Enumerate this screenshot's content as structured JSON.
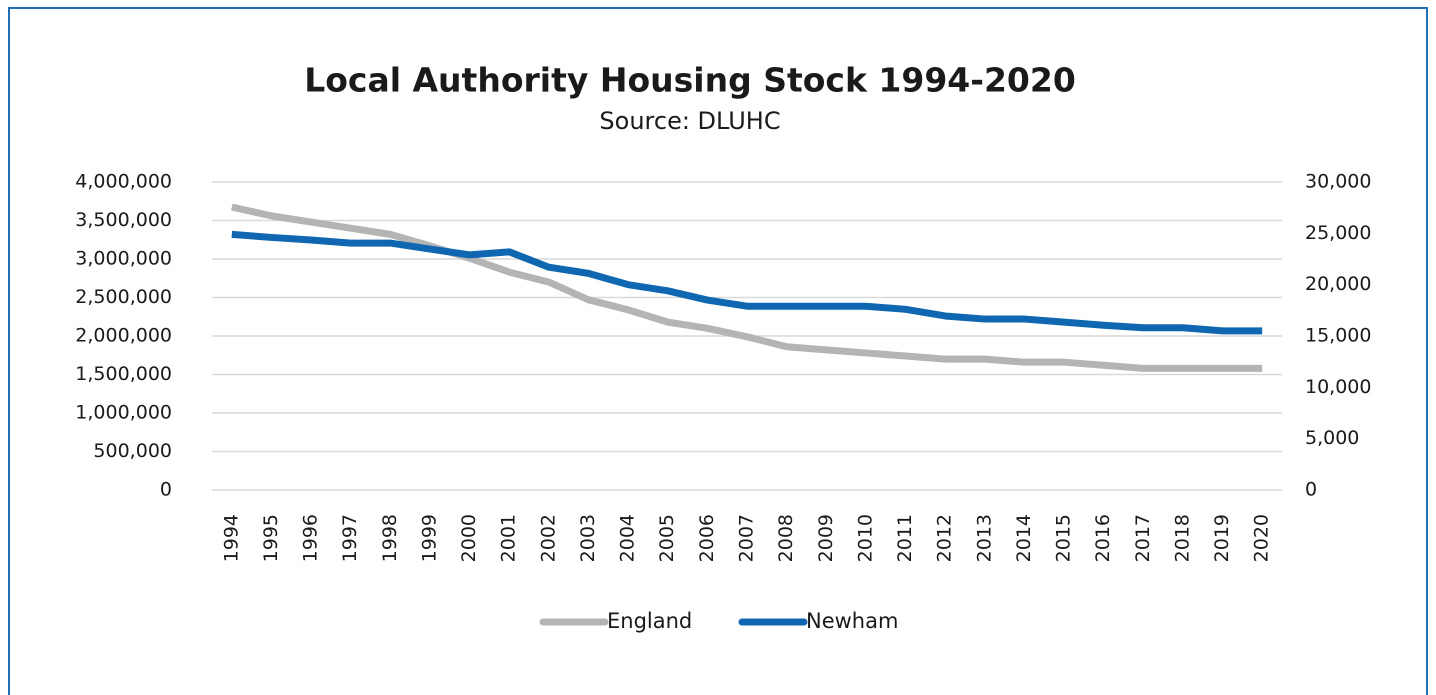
{
  "chart_data": {
    "type": "line",
    "title": "Local Authority Housing Stock 1994-2020",
    "subtitle": "Source: DLUHC",
    "categories": [
      "1994",
      "1995",
      "1996",
      "1997",
      "1998",
      "1999",
      "2000",
      "2001",
      "2002",
      "2003",
      "2004",
      "2005",
      "2006",
      "2007",
      "2008",
      "2009",
      "2010",
      "2011",
      "2012",
      "2013",
      "2014",
      "2015",
      "2016",
      "2017",
      "2018",
      "2019",
      "2020"
    ],
    "series": [
      {
        "name": "England",
        "color": "#b4b4b4",
        "values": [
          3675000,
          3560000,
          3480000,
          3400000,
          3320000,
          3170000,
          3010000,
          2830000,
          2700000,
          2470000,
          2340000,
          2180000,
          2100000,
          1990000,
          1860000,
          1820000,
          1780000,
          1740000,
          1700000,
          1700000,
          1660000,
          1660000,
          1620000,
          1580000,
          1580000,
          1580000,
          1580000
        ]
      },
      {
        "name": "Newham",
        "color": "#0f67b1",
        "axis": "y2",
        "values": [
          24900,
          24600,
          24350,
          24050,
          24050,
          23470,
          22900,
          23200,
          21700,
          21100,
          20000,
          19400,
          18500,
          17900,
          17900,
          17900,
          17900,
          17600,
          16950,
          16650,
          16650,
          16350,
          16050,
          15800,
          15800,
          15500,
          15500
        ]
      }
    ],
    "ylim": [
      0,
      4000000
    ],
    "yticks": [
      0,
      {
        "value": 500000,
        "label": "500,000"
      },
      {
        "value": 1000000,
        "label": "1,000,000"
      },
      {
        "value": 1500000,
        "label": "1,500,000"
      },
      {
        "value": 2000000,
        "label": "2,000,000"
      },
      {
        "value": 2500000,
        "label": "2,500,000"
      },
      {
        "value": 3000000,
        "label": "3,000,000"
      },
      {
        "value": 3500000,
        "label": "3,500,000"
      },
      {
        "value": 4000000,
        "label": "4,000,000"
      }
    ],
    "y2lim": [
      0,
      30000
    ],
    "y2ticks": [
      0,
      {
        "value": 5000,
        "label": "5,000"
      },
      {
        "value": 10000,
        "label": "10,000"
      },
      {
        "value": 15000,
        "label": "15,000"
      },
      {
        "value": 20000,
        "label": "20,000"
      },
      {
        "value": 25000,
        "label": "25,000"
      },
      {
        "value": 30000,
        "label": "30,000"
      }
    ],
    "grid": true,
    "legend": "bottom"
  }
}
